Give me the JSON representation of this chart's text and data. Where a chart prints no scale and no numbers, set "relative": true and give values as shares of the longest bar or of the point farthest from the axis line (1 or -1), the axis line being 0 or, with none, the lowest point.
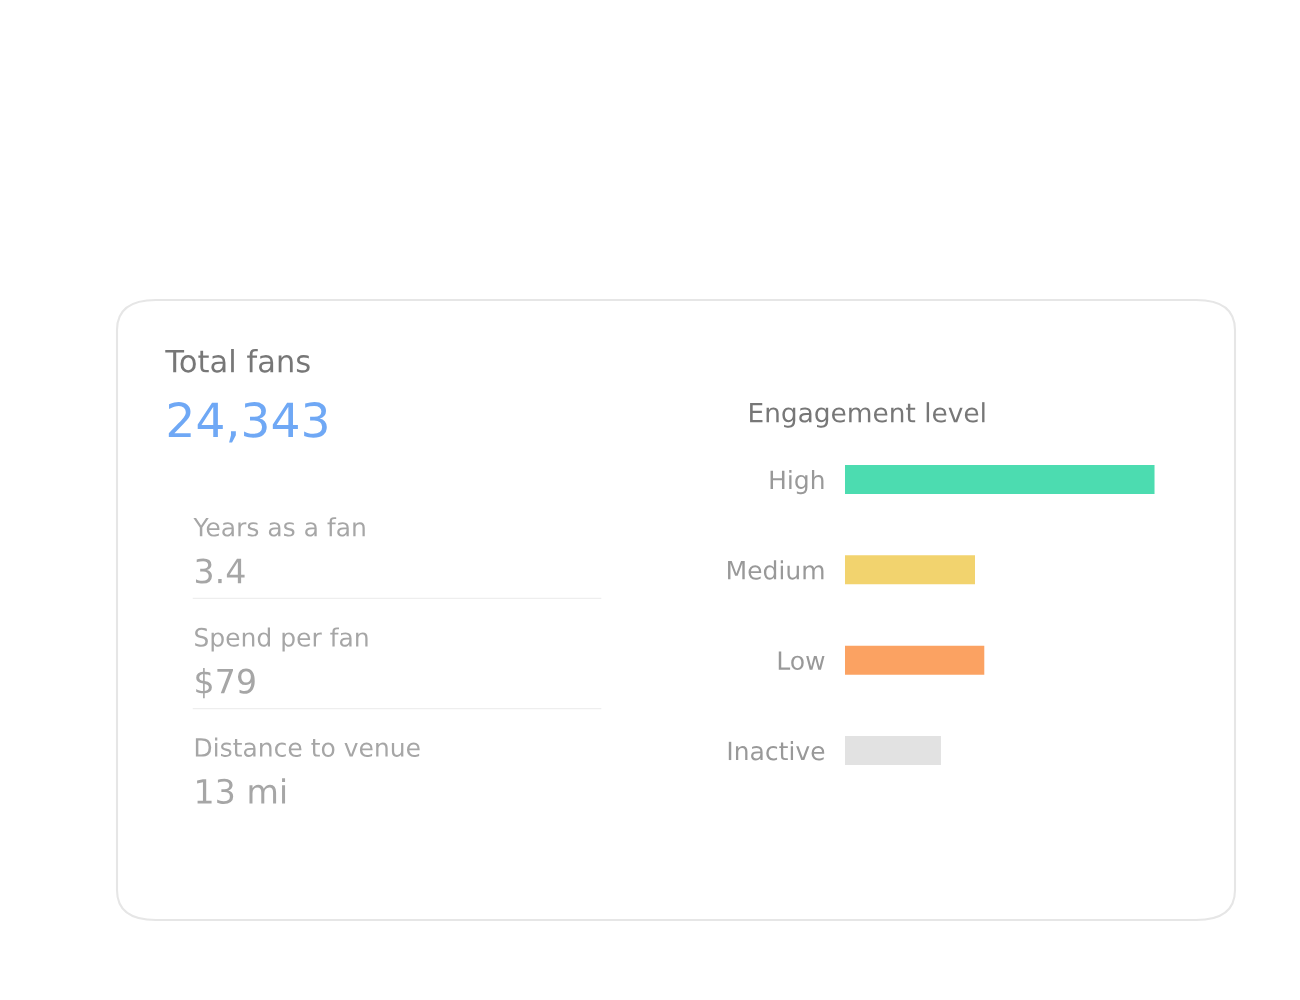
{
  "chart_data": [
    {
      "type": "other",
      "title": "Total fans",
      "annotations": [
        "24,343",
        "Years as a fan",
        "3.4",
        "Spend per fan",
        "$79",
        "Distance to venue",
        "13 mi"
      ]
    },
    {
      "type": "bar",
      "title": "Engagement level",
      "orientation": "horizontal",
      "relative": true,
      "categories": [
        "High",
        "Medium",
        "Low",
        "Inactive"
      ],
      "values": [
        1,
        0.42,
        0.45,
        0.31
      ],
      "colors": [
        "#4cdcb0",
        "#f2d36e",
        "#fba262",
        "#e2e2e2"
      ]
    }
  ]
}
